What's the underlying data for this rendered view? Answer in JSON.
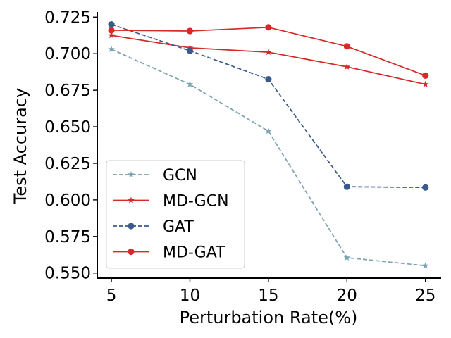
{
  "chart_data": {
    "type": "line",
    "title": "",
    "xlabel": "Perturbation Rate(%)",
    "ylabel": "Test Accuracy",
    "x": [
      5,
      10,
      15,
      20,
      25
    ],
    "xticks": [
      5,
      10,
      15,
      20,
      25
    ],
    "xticklabels": [
      "5",
      "10",
      "15",
      "20",
      "25"
    ],
    "xlim": [
      4.1,
      26.0
    ],
    "yticks": [
      0.55,
      0.575,
      0.6,
      0.625,
      0.65,
      0.675,
      0.7,
      0.725
    ],
    "yticklabels": [
      "0.550",
      "0.575",
      "0.600",
      "0.625",
      "0.650",
      "0.675",
      "0.700",
      "0.725"
    ],
    "ylim": [
      0.5465,
      0.7285
    ],
    "grid": false,
    "legend_position": "lower-left",
    "series": [
      {
        "name": "GCN",
        "values": [
          0.703,
          0.679,
          0.647,
          0.5605,
          0.555
        ],
        "color": "#7ba2b2",
        "linestyle": "dashed",
        "marker": "star"
      },
      {
        "name": "MD-GCN",
        "values": [
          0.7125,
          0.704,
          0.701,
          0.691,
          0.679
        ],
        "color": "#d62a2a",
        "linestyle": "solid",
        "marker": "star"
      },
      {
        "name": "GAT",
        "values": [
          0.72,
          0.702,
          0.6825,
          0.609,
          0.6085
        ],
        "color": "#3a5a8a",
        "linestyle": "dashed",
        "marker": "circle"
      },
      {
        "name": "MD-GAT",
        "values": [
          0.716,
          0.7155,
          0.718,
          0.705,
          0.685
        ],
        "color": "#d62a2a",
        "linestyle": "solid",
        "marker": "circle"
      }
    ]
  }
}
